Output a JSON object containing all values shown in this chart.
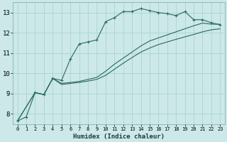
{
  "xlabel": "Humidex (Indice chaleur)",
  "ylabel": "",
  "bg_color": "#cce8e8",
  "grid_color": "#aad4d4",
  "line_color": "#2a6b5a",
  "xlim": [
    -0.5,
    23.5
  ],
  "ylim": [
    7.5,
    13.5
  ],
  "xticks": [
    0,
    1,
    2,
    3,
    4,
    5,
    6,
    7,
    8,
    9,
    10,
    11,
    12,
    13,
    14,
    15,
    16,
    17,
    18,
    19,
    20,
    21,
    22,
    23
  ],
  "yticks": [
    8,
    9,
    10,
    11,
    12,
    13
  ],
  "lines": [
    {
      "x": [
        0,
        1,
        2,
        3,
        4,
        5,
        6,
        7,
        8,
        9,
        10,
        11,
        12,
        13,
        14,
        15,
        16,
        17,
        18,
        19,
        20,
        21,
        22,
        23
      ],
      "y": [
        7.65,
        7.85,
        9.05,
        8.95,
        9.75,
        9.65,
        10.7,
        11.45,
        11.55,
        11.65,
        12.55,
        12.75,
        13.05,
        13.05,
        13.2,
        13.1,
        13.0,
        12.95,
        12.85,
        13.05,
        12.65,
        12.65,
        12.5,
        12.4
      ],
      "marker": true
    },
    {
      "x": [
        0,
        2,
        3,
        4,
        5,
        6,
        7,
        8,
        9,
        10,
        11,
        12,
        13,
        14,
        15,
        16,
        17,
        18,
        19,
        20,
        21,
        22,
        23
      ],
      "y": [
        7.65,
        9.05,
        8.95,
        9.75,
        9.5,
        9.55,
        9.6,
        9.7,
        9.8,
        10.1,
        10.45,
        10.75,
        11.05,
        11.35,
        11.6,
        11.75,
        11.9,
        12.05,
        12.2,
        12.35,
        12.48,
        12.43,
        12.42
      ],
      "marker": false
    },
    {
      "x": [
        0,
        2,
        3,
        4,
        5,
        6,
        7,
        8,
        9,
        10,
        11,
        12,
        13,
        14,
        15,
        16,
        17,
        18,
        19,
        20,
        21,
        22,
        23
      ],
      "y": [
        7.65,
        9.05,
        8.95,
        9.75,
        9.45,
        9.5,
        9.55,
        9.62,
        9.7,
        9.9,
        10.2,
        10.5,
        10.78,
        11.05,
        11.25,
        11.42,
        11.55,
        11.68,
        11.8,
        11.92,
        12.05,
        12.15,
        12.2
      ],
      "marker": false
    }
  ]
}
